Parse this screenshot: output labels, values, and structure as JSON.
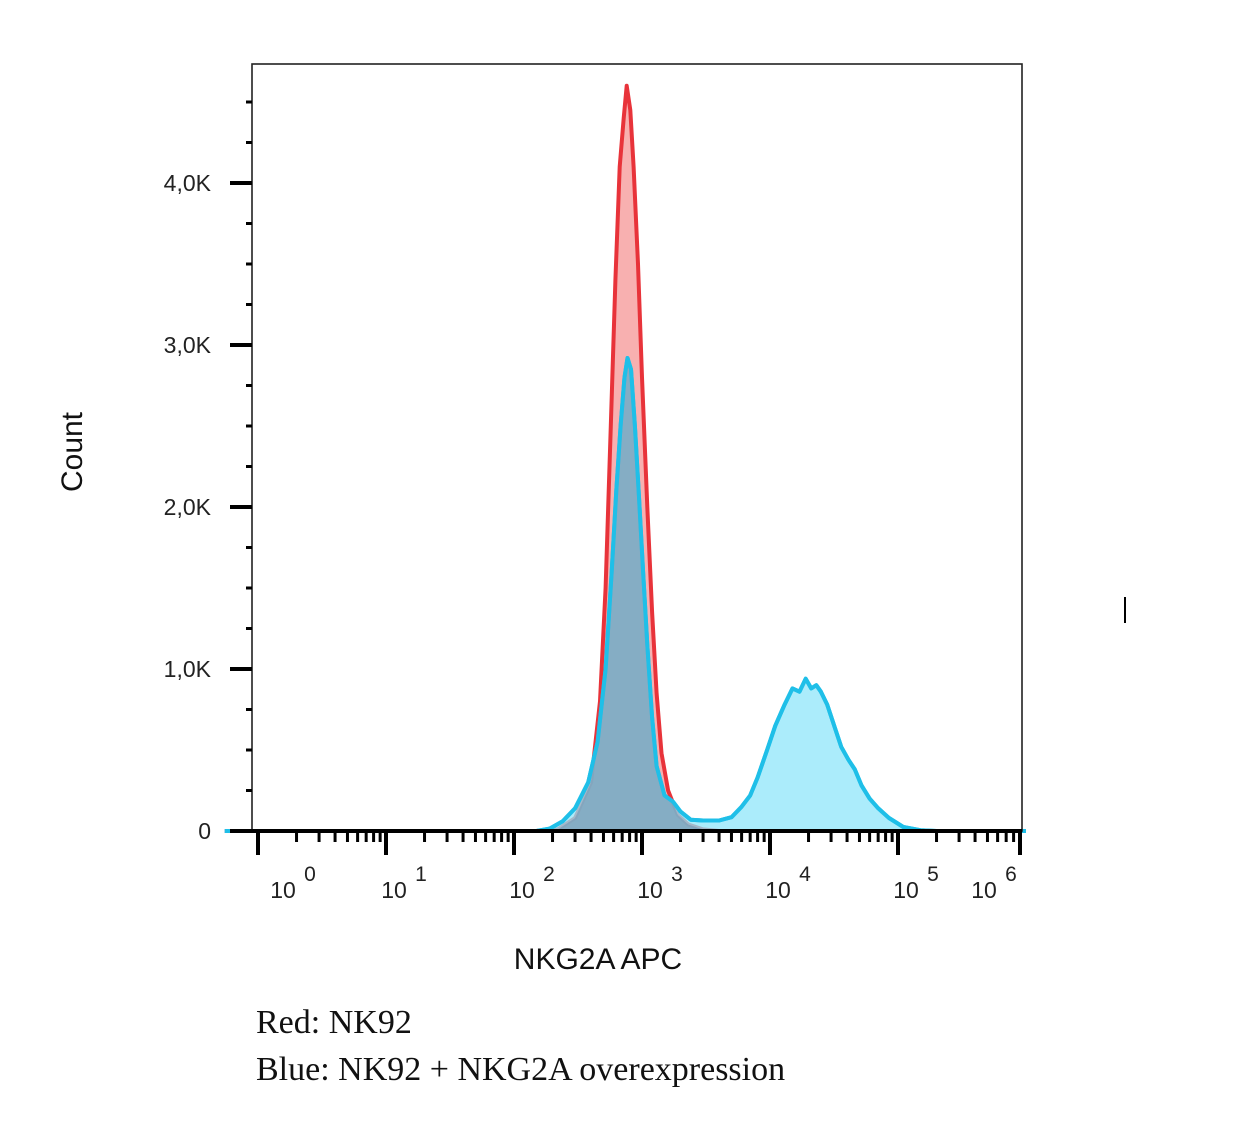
{
  "chart_data": {
    "type": "area",
    "title": "",
    "xlabel": "NKG2A APC",
    "ylabel": "Count",
    "xscale": "log",
    "xlim": [
      0.55,
      1000000
    ],
    "ylim": [
      0,
      4800
    ],
    "x_ticks": [
      {
        "base": "10",
        "exp": "0",
        "value": 1
      },
      {
        "base": "10",
        "exp": "1",
        "value": 10
      },
      {
        "base": "10",
        "exp": "2",
        "value": 100
      },
      {
        "base": "10",
        "exp": "3",
        "value": 1000
      },
      {
        "base": "10",
        "exp": "4",
        "value": 10000
      },
      {
        "base": "10",
        "exp": "5",
        "value": 100000
      },
      {
        "base": "10",
        "exp": "6",
        "value": 1000000
      }
    ],
    "y_ticks": [
      {
        "label": "0",
        "value": 0
      },
      {
        "label": "1,0K",
        "value": 1000
      },
      {
        "label": "2,0K",
        "value": 2000
      },
      {
        "label": "3,0K",
        "value": 3000
      },
      {
        "label": "4,0K",
        "value": 4000
      }
    ],
    "grid": false,
    "series": [
      {
        "color": "#e8333a",
        "fill": "#f7a7a7",
        "points": [
          [
            0.55,
            0
          ],
          [
            150,
            0
          ],
          [
            220,
            10
          ],
          [
            300,
            80
          ],
          [
            400,
            300
          ],
          [
            470,
            800
          ],
          [
            520,
            1500
          ],
          [
            570,
            2500
          ],
          [
            620,
            3400
          ],
          [
            670,
            4100
          ],
          [
            720,
            4400
          ],
          [
            760,
            4600
          ],
          [
            810,
            4450
          ],
          [
            860,
            4100
          ],
          [
            930,
            3500
          ],
          [
            1000,
            2800
          ],
          [
            1100,
            2000
          ],
          [
            1200,
            1350
          ],
          [
            1300,
            850
          ],
          [
            1420,
            480
          ],
          [
            1600,
            250
          ],
          [
            1900,
            100
          ],
          [
            2300,
            40
          ],
          [
            3000,
            10
          ],
          [
            4000,
            0
          ],
          [
            1000000,
            0
          ]
        ]
      },
      {
        "color": "#1fbfe8",
        "fill": "#8fe6f9",
        "points": [
          [
            0.55,
            0
          ],
          [
            150,
            0
          ],
          [
            190,
            15
          ],
          [
            240,
            60
          ],
          [
            300,
            140
          ],
          [
            380,
            300
          ],
          [
            450,
            550
          ],
          [
            520,
            1000
          ],
          [
            580,
            1600
          ],
          [
            630,
            2100
          ],
          [
            680,
            2500
          ],
          [
            730,
            2800
          ],
          [
            770,
            2920
          ],
          [
            820,
            2850
          ],
          [
            880,
            2500
          ],
          [
            950,
            2050
          ],
          [
            1020,
            1600
          ],
          [
            1100,
            1150
          ],
          [
            1200,
            700
          ],
          [
            1300,
            400
          ],
          [
            1500,
            220
          ],
          [
            1750,
            180
          ],
          [
            2000,
            120
          ],
          [
            2400,
            70
          ],
          [
            3000,
            65
          ],
          [
            4000,
            65
          ],
          [
            5000,
            85
          ],
          [
            6000,
            150
          ],
          [
            7000,
            220
          ],
          [
            8000,
            330
          ],
          [
            9500,
            500
          ],
          [
            11000,
            650
          ],
          [
            13000,
            780
          ],
          [
            15000,
            880
          ],
          [
            17000,
            860
          ],
          [
            19000,
            940
          ],
          [
            21000,
            880
          ],
          [
            23000,
            900
          ],
          [
            25000,
            860
          ],
          [
            28000,
            780
          ],
          [
            32000,
            640
          ],
          [
            36000,
            520
          ],
          [
            41000,
            440
          ],
          [
            46000,
            380
          ],
          [
            52000,
            280
          ],
          [
            60000,
            200
          ],
          [
            70000,
            140
          ],
          [
            85000,
            80
          ],
          [
            110000,
            25
          ],
          [
            150000,
            5
          ],
          [
            200000,
            0
          ],
          [
            1000000,
            0
          ]
        ]
      }
    ]
  },
  "legend_lines": [
    "Red: NK92",
    "Blue: NK92 + NKG2A overexpression"
  ]
}
